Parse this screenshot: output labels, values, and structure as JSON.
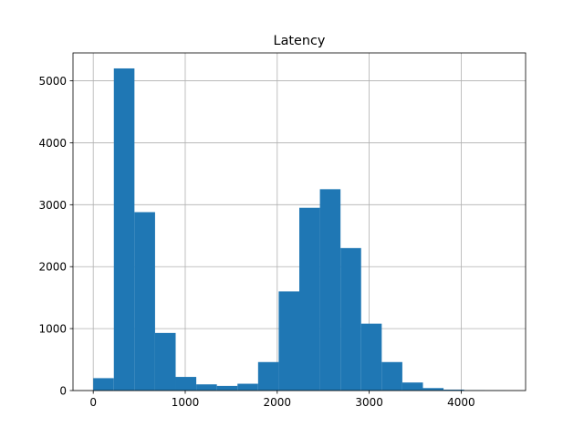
{
  "chart_data": {
    "type": "bar",
    "title": "Latency",
    "xlabel": "",
    "ylabel": "",
    "grid": true,
    "bar_color": "#1f77b4",
    "bin_edges": [
      0,
      224,
      448,
      672,
      896,
      1120,
      1344,
      1568,
      1792,
      2016,
      2240,
      2464,
      2688,
      2912,
      3136,
      3360,
      3584,
      3808,
      4032,
      4256,
      4480
    ],
    "counts": [
      200,
      5200,
      2880,
      930,
      220,
      100,
      75,
      110,
      460,
      1600,
      2950,
      3250,
      2300,
      1080,
      460,
      130,
      40,
      15,
      5,
      2
    ],
    "xlim": [
      -220,
      4700
    ],
    "ylim": [
      0,
      5450
    ],
    "xticks": [
      0,
      1000,
      2000,
      3000,
      4000
    ],
    "xtick_labels": [
      "0",
      "1000",
      "2000",
      "3000",
      "4000"
    ],
    "yticks": [
      0,
      1000,
      2000,
      3000,
      4000,
      5000
    ],
    "ytick_labels": [
      "0",
      "1000",
      "2000",
      "3000",
      "4000",
      "5000"
    ]
  }
}
